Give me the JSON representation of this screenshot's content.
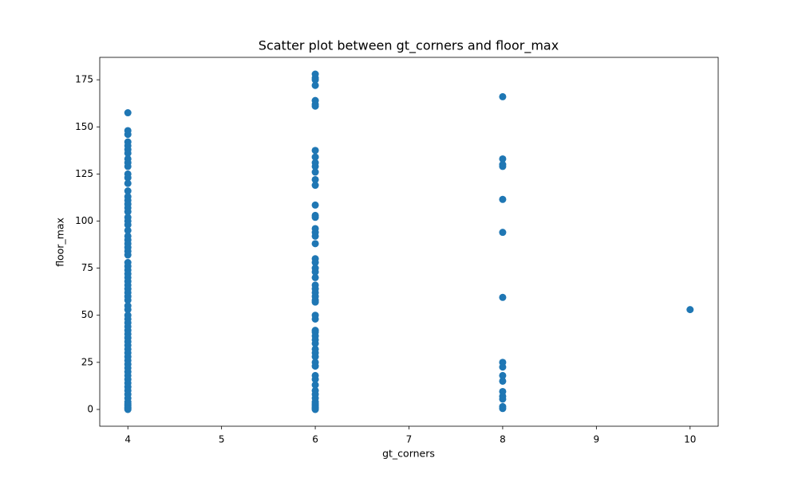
{
  "chart_data": {
    "type": "scatter",
    "title": "Scatter plot between gt_corners and floor_max",
    "x_label": "gt_corners",
    "y_label": "floor_max",
    "color": "#1f77b4",
    "x": [
      4,
      4,
      4,
      4,
      4,
      4,
      4,
      4,
      4,
      4,
      4,
      4,
      4,
      4,
      4,
      4,
      4,
      4,
      4,
      4,
      4,
      4,
      4,
      4,
      4,
      4,
      4,
      4,
      4,
      4,
      4,
      4,
      4,
      4,
      4,
      4,
      4,
      4,
      4,
      4,
      4,
      4,
      4,
      4,
      4,
      4,
      4,
      4,
      4,
      4,
      4,
      4,
      4,
      4,
      4,
      4,
      4,
      4,
      4,
      4,
      4,
      4,
      4,
      4,
      4,
      4,
      4,
      4,
      4,
      4,
      4,
      6,
      6,
      6,
      6,
      6,
      6,
      6,
      6,
      6,
      6,
      6,
      6,
      6,
      6,
      6,
      6,
      6,
      6,
      6,
      6,
      6,
      6,
      6,
      6,
      6,
      6,
      6,
      6,
      6,
      6,
      6,
      6,
      6,
      6,
      6,
      6,
      6,
      6,
      6,
      6,
      6,
      6,
      6,
      6,
      6,
      6,
      6,
      6,
      6,
      6,
      6,
      6,
      6,
      6,
      6,
      6,
      8,
      8,
      8,
      8,
      8,
      8,
      8,
      8,
      8,
      8,
      8,
      8,
      8,
      8,
      8,
      8,
      10
    ],
    "values": [
      157.5,
      148,
      146,
      142,
      140,
      138,
      136,
      133,
      131,
      129,
      125,
      123,
      120,
      116,
      113,
      111,
      109,
      107,
      105,
      102,
      100,
      98,
      95,
      92,
      90,
      88,
      86,
      84,
      82,
      78,
      76,
      74,
      72,
      70,
      68,
      66,
      64,
      62,
      60,
      58,
      55,
      53,
      50,
      48,
      46,
      44,
      42,
      40,
      38,
      36,
      34,
      32,
      30,
      28,
      26,
      24,
      22,
      20,
      18,
      16,
      14,
      12,
      10,
      8,
      6,
      4,
      3,
      2,
      1,
      0.5,
      0,
      178,
      176,
      175,
      172,
      164,
      162,
      161,
      137.5,
      134,
      131,
      129,
      126,
      122,
      119,
      108.5,
      103,
      102,
      96,
      94,
      92,
      88,
      80,
      78,
      75,
      73,
      70,
      66,
      64,
      62,
      60,
      58,
      57,
      50,
      48,
      42,
      41,
      39,
      37,
      35,
      32,
      30,
      28,
      25,
      23,
      18,
      16,
      13,
      10,
      8,
      6,
      4,
      3,
      2,
      1,
      0.5,
      0,
      166,
      133,
      130,
      129,
      111.5,
      94,
      59.5,
      25,
      22.5,
      18,
      15,
      9.5,
      7,
      5.5,
      1.5,
      0.5,
      53
    ],
    "xlim": [
      3.7,
      10.3
    ],
    "ylim": [
      -8.9,
      186.9
    ],
    "xticks": [
      4,
      5,
      6,
      7,
      8,
      9,
      10
    ],
    "yticks": [
      0,
      25,
      50,
      75,
      100,
      125,
      150,
      175
    ]
  }
}
